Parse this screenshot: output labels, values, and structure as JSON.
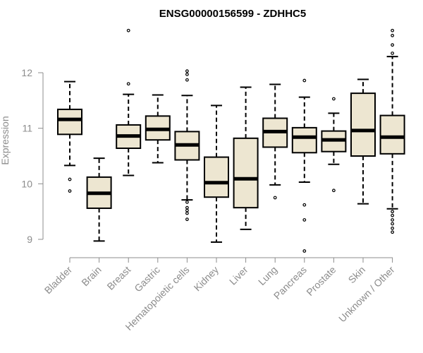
{
  "chart_data": {
    "type": "boxplot",
    "title": "ENSG00000156599 - ZDHHC5",
    "xlabel": "",
    "ylabel": "Expression",
    "ylim": [
      8.7,
      12.95
    ],
    "yticks": [
      9,
      10,
      11,
      12
    ],
    "box_fill": "#ede6d1",
    "categories": [
      "Bladder",
      "Brain",
      "Breast",
      "Gastric",
      "Hematopoietic cells",
      "Kidney",
      "Liver",
      "Lung",
      "Pancreas",
      "Prostate",
      "Skin",
      "Unknown / Other"
    ],
    "boxes": [
      {
        "category": "Bladder",
        "whisker_low": 10.33,
        "q1": 10.89,
        "median": 11.16,
        "q3": 11.34,
        "whisker_high": 11.84,
        "outliers": [
          10.08,
          9.87
        ]
      },
      {
        "category": "Brain",
        "whisker_low": 8.97,
        "q1": 9.56,
        "median": 9.83,
        "q3": 10.12,
        "whisker_high": 10.46,
        "outliers": []
      },
      {
        "category": "Breast",
        "whisker_low": 10.15,
        "q1": 10.64,
        "median": 10.86,
        "q3": 11.06,
        "whisker_high": 11.61,
        "outliers": [
          12.76,
          11.8
        ]
      },
      {
        "category": "Gastric",
        "whisker_low": 10.38,
        "q1": 10.79,
        "median": 10.98,
        "q3": 11.22,
        "whisker_high": 11.6,
        "outliers": []
      },
      {
        "category": "Hematopoietic cells",
        "whisker_low": 9.71,
        "q1": 10.43,
        "median": 10.7,
        "q3": 10.94,
        "whisker_high": 11.59,
        "outliers": [
          12.03,
          11.97,
          11.87,
          9.67,
          9.57,
          9.52,
          9.47,
          9.36
        ]
      },
      {
        "category": "Kidney",
        "whisker_low": 8.95,
        "q1": 9.76,
        "median": 10.02,
        "q3": 10.48,
        "whisker_high": 11.41,
        "outliers": []
      },
      {
        "category": "Liver",
        "whisker_low": 9.18,
        "q1": 9.57,
        "median": 10.09,
        "q3": 10.82,
        "whisker_high": 11.74,
        "outliers": []
      },
      {
        "category": "Lung",
        "whisker_low": 9.98,
        "q1": 10.66,
        "median": 10.94,
        "q3": 11.18,
        "whisker_high": 11.79,
        "outliers": [
          9.75
        ]
      },
      {
        "category": "Pancreas",
        "whisker_low": 10.03,
        "q1": 10.56,
        "median": 10.84,
        "q3": 11.01,
        "whisker_high": 11.56,
        "outliers": [
          11.86,
          9.62,
          9.35,
          8.79
        ]
      },
      {
        "category": "Prostate",
        "whisker_low": 10.35,
        "q1": 10.58,
        "median": 10.79,
        "q3": 10.95,
        "whisker_high": 11.27,
        "outliers": [
          11.53,
          9.88
        ]
      },
      {
        "category": "Skin",
        "whisker_low": 9.64,
        "q1": 10.5,
        "median": 10.96,
        "q3": 11.63,
        "whisker_high": 11.88,
        "outliers": []
      },
      {
        "category": "Unknown / Other",
        "whisker_low": 9.55,
        "q1": 10.54,
        "median": 10.84,
        "q3": 11.23,
        "whisker_high": 12.29,
        "outliers": [
          12.76,
          12.67,
          12.5,
          12.35,
          9.5,
          9.43,
          9.35,
          9.28,
          9.2,
          9.13
        ]
      }
    ]
  }
}
